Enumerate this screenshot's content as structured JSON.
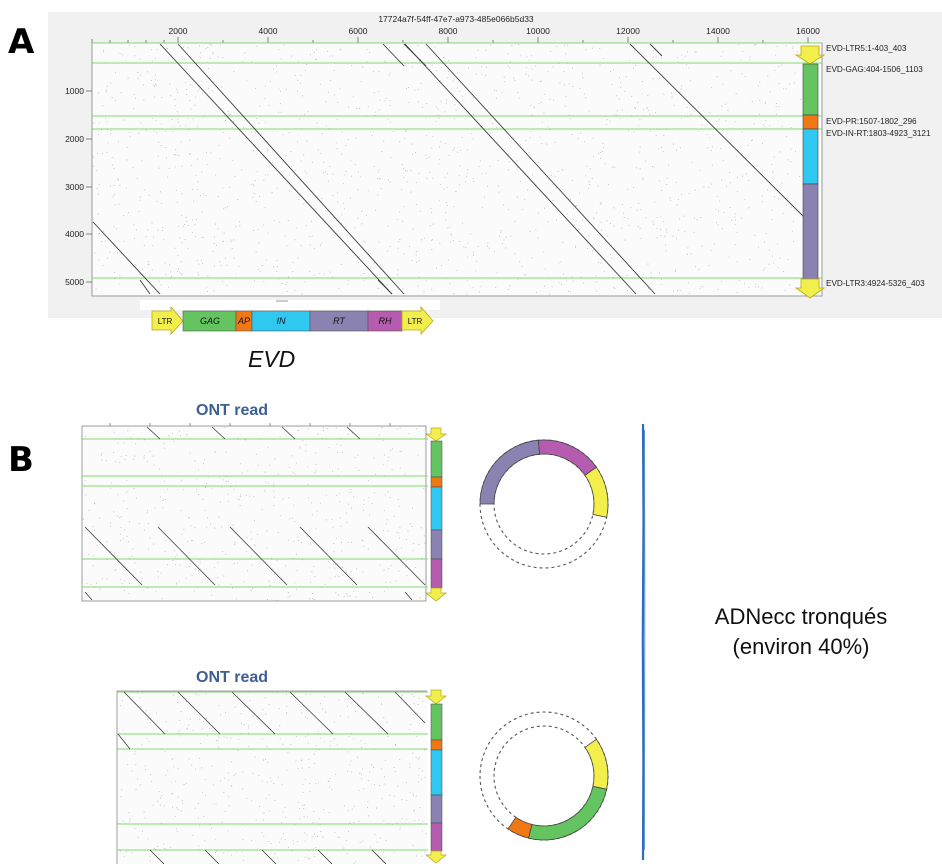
{
  "panel_a": {
    "letter": "A",
    "header_id": "17724a7f-54ff-47e7-a973-485e066b5d33",
    "x_ticks": [
      "2000",
      "4000",
      "6000",
      "8000",
      "10000",
      "12000",
      "14000",
      "16000"
    ],
    "y_ticks": [
      "1000",
      "2000",
      "3000",
      "4000",
      "5000"
    ],
    "annotations": [
      "EVD-LTR5:1-403_403",
      "EVD-GAG:404-1506_1103",
      "EVD-PR:1507-1802_296",
      "EVD-IN-RT:1803-4923_3121",
      "EVD-LTR3:4924-5326_403"
    ],
    "map_labels": [
      "LTR",
      "GAG",
      "AP",
      "IN",
      "RT",
      "RH",
      "LTR"
    ],
    "map_caption": "EVD"
  },
  "panel_b": {
    "letter": "B",
    "read_title_1": "ONT read",
    "read_title_2": "ONT read",
    "caption_line1": "ADNecc tronqués",
    "caption_line2": "(environ 40%)"
  },
  "colors": {
    "gag": "#63c460",
    "pr": "#f07814",
    "in": "#2ec8f0",
    "rt": "#8a83b2",
    "rh": "#b65cb0",
    "ltr": "#f2ee4c",
    "grid_green": "#7cdc6c",
    "blue_title": "#3d5f92"
  }
}
